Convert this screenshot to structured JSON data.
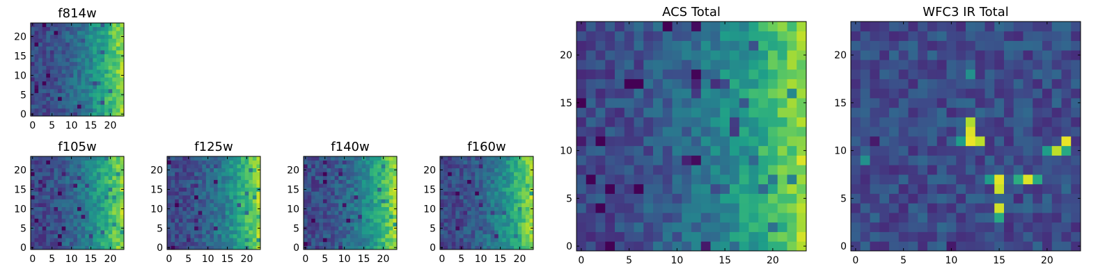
{
  "colormap": "viridis",
  "charts": [
    {
      "id": "f814w",
      "type": "heatmap",
      "title": "f814w",
      "grid": [
        24,
        24
      ],
      "xlim": [
        0,
        24
      ],
      "ylim": [
        0,
        24
      ],
      "xticks": [
        0,
        5,
        10,
        15,
        20
      ],
      "yticks": [
        0,
        5,
        10,
        15,
        20
      ],
      "xtick_labels": [
        "0",
        "5",
        "10",
        "15",
        "20"
      ],
      "ytick_labels": [
        "0",
        "5",
        "10",
        "15",
        "20"
      ],
      "pattern": "gradient-left-to-right",
      "seed": 11
    },
    {
      "id": "f105w",
      "type": "heatmap",
      "title": "f105w",
      "grid": [
        24,
        24
      ],
      "xlim": [
        0,
        24
      ],
      "ylim": [
        0,
        24
      ],
      "xticks": [
        0,
        5,
        10,
        15,
        20
      ],
      "yticks": [
        0,
        5,
        10,
        15,
        20
      ],
      "xtick_labels": [
        "0",
        "5",
        "10",
        "15",
        "20"
      ],
      "ytick_labels": [
        "0",
        "5",
        "10",
        "15",
        "20"
      ],
      "pattern": "gradient-left-to-right",
      "seed": 23
    },
    {
      "id": "f125w",
      "type": "heatmap",
      "title": "f125w",
      "grid": [
        24,
        24
      ],
      "xlim": [
        0,
        24
      ],
      "ylim": [
        0,
        24
      ],
      "xticks": [
        0,
        5,
        10,
        15,
        20
      ],
      "yticks": [
        0,
        5,
        10,
        15,
        20
      ],
      "xtick_labels": [
        "0",
        "5",
        "10",
        "15",
        "20"
      ],
      "ytick_labels": [
        "0",
        "5",
        "10",
        "15",
        "20"
      ],
      "pattern": "gradient-left-to-right",
      "seed": 37
    },
    {
      "id": "f140w",
      "type": "heatmap",
      "title": "f140w",
      "grid": [
        24,
        24
      ],
      "xlim": [
        0,
        24
      ],
      "ylim": [
        0,
        24
      ],
      "xticks": [
        0,
        5,
        10,
        15,
        20
      ],
      "yticks": [
        0,
        5,
        10,
        15,
        20
      ],
      "xtick_labels": [
        "0",
        "5",
        "10",
        "15",
        "20"
      ],
      "ytick_labels": [
        "0",
        "5",
        "10",
        "15",
        "20"
      ],
      "pattern": "gradient-left-to-right",
      "seed": 41
    },
    {
      "id": "f160w",
      "type": "heatmap",
      "title": "f160w",
      "grid": [
        24,
        24
      ],
      "xlim": [
        0,
        24
      ],
      "ylim": [
        0,
        24
      ],
      "xticks": [
        0,
        5,
        10,
        15,
        20
      ],
      "yticks": [
        0,
        5,
        10,
        15,
        20
      ],
      "xtick_labels": [
        "0",
        "5",
        "10",
        "15",
        "20"
      ],
      "ytick_labels": [
        "0",
        "5",
        "10",
        "15",
        "20"
      ],
      "pattern": "gradient-left-to-right",
      "seed": 53
    },
    {
      "id": "acs-total",
      "type": "heatmap",
      "title": "ACS Total",
      "grid": [
        24,
        24
      ],
      "xlim": [
        0,
        24
      ],
      "ylim": [
        0,
        24
      ],
      "xticks": [
        0,
        5,
        10,
        15,
        20
      ],
      "yticks": [
        0,
        5,
        10,
        15,
        20
      ],
      "xtick_labels": [
        "0",
        "5",
        "10",
        "15",
        "20"
      ],
      "ytick_labels": [
        "0",
        "5",
        "10",
        "15",
        "20"
      ],
      "pattern": "gradient-left-to-right",
      "seed": 67
    },
    {
      "id": "wfc3-ir-total",
      "type": "heatmap",
      "title": "WFC3 IR Total",
      "grid": [
        24,
        24
      ],
      "xlim": [
        0,
        24
      ],
      "ylim": [
        0,
        24
      ],
      "xticks": [
        0,
        5,
        10,
        15,
        20
      ],
      "yticks": [
        0,
        5,
        10,
        15,
        20
      ],
      "xtick_labels": [
        "0",
        "5",
        "10",
        "15",
        "20"
      ],
      "ytick_labels": [
        "0",
        "5",
        "10",
        "15",
        "20"
      ],
      "pattern": "dark-with-bright-spots",
      "seed": 79,
      "bright_spots": [
        {
          "x": 12,
          "y": 12,
          "v": 0.95
        },
        {
          "x": 12,
          "y": 11,
          "v": 0.97
        },
        {
          "x": 13,
          "y": 11,
          "v": 0.9
        },
        {
          "x": 12,
          "y": 13,
          "v": 0.88
        },
        {
          "x": 11,
          "y": 11,
          "v": 0.55
        },
        {
          "x": 15,
          "y": 7,
          "v": 0.96
        },
        {
          "x": 15,
          "y": 6,
          "v": 0.92
        },
        {
          "x": 14,
          "y": 7,
          "v": 0.55
        },
        {
          "x": 15,
          "y": 4,
          "v": 0.93
        },
        {
          "x": 15,
          "y": 3,
          "v": 0.6
        },
        {
          "x": 18,
          "y": 7,
          "v": 0.95
        },
        {
          "x": 17,
          "y": 7,
          "v": 0.62
        },
        {
          "x": 19,
          "y": 7,
          "v": 0.6
        },
        {
          "x": 22,
          "y": 11,
          "v": 0.97
        },
        {
          "x": 21,
          "y": 10,
          "v": 0.9
        },
        {
          "x": 20,
          "y": 10,
          "v": 0.55
        },
        {
          "x": 22,
          "y": 10,
          "v": 0.6
        },
        {
          "x": 12,
          "y": 18,
          "v": 0.5
        },
        {
          "x": 1,
          "y": 9,
          "v": 0.5
        }
      ]
    }
  ]
}
